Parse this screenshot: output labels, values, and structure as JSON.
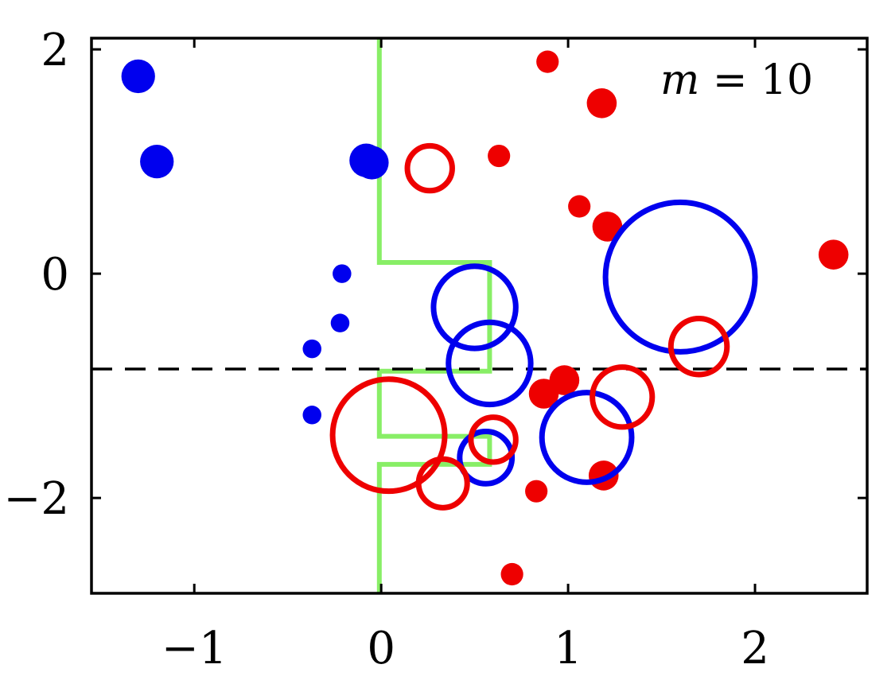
{
  "chart_data": {
    "type": "scatter",
    "title": "",
    "xlabel": "",
    "ylabel": "",
    "xlim": [
      -1.55,
      2.6
    ],
    "ylim": [
      -2.85,
      2.1
    ],
    "xticks": [
      -1,
      0,
      1,
      2
    ],
    "yticks": [
      -2,
      0,
      2
    ],
    "xtick_labels": [
      "−1",
      "0",
      "1",
      "2"
    ],
    "ytick_labels": [
      "−2",
      "0",
      "2"
    ],
    "grid": false,
    "annotation": {
      "var": "m",
      "text": " = 10",
      "position": "top-right"
    },
    "colors": {
      "class_a": "#0000ee",
      "class_b": "#ee0000",
      "boundary": "#88ee66",
      "threshold": "#000000"
    },
    "threshold_y": -0.85,
    "decision_boundary": [
      [
        -0.01,
        2.1
      ],
      [
        -0.01,
        0.1
      ],
      [
        0.58,
        0.1
      ],
      [
        0.58,
        -0.87
      ],
      [
        -0.01,
        -0.87
      ],
      [
        -0.01,
        -1.45
      ],
      [
        0.58,
        -1.45
      ],
      [
        0.58,
        -1.7
      ],
      [
        -0.01,
        -1.7
      ],
      [
        -0.01,
        -2.85
      ]
    ],
    "filled_points": [
      {
        "x": -1.3,
        "y": 1.76,
        "weight": 0.09,
        "cls": "a"
      },
      {
        "x": -1.2,
        "y": 1.0,
        "weight": 0.09,
        "cls": "a"
      },
      {
        "x": -0.08,
        "y": 1.01,
        "weight": 0.09,
        "cls": "a"
      },
      {
        "x": -0.05,
        "y": 0.99,
        "weight": 0.09,
        "cls": "a"
      },
      {
        "x": -0.21,
        "y": 0.0,
        "weight": 0.05,
        "cls": "a"
      },
      {
        "x": -0.22,
        "y": -0.44,
        "weight": 0.05,
        "cls": "a"
      },
      {
        "x": -0.37,
        "y": -0.67,
        "weight": 0.05,
        "cls": "a"
      },
      {
        "x": -0.37,
        "y": -1.26,
        "weight": 0.05,
        "cls": "a"
      },
      {
        "x": 0.89,
        "y": 1.89,
        "weight": 0.06,
        "cls": "b"
      },
      {
        "x": 1.18,
        "y": 1.52,
        "weight": 0.08,
        "cls": "b"
      },
      {
        "x": 0.63,
        "y": 1.05,
        "weight": 0.06,
        "cls": "b"
      },
      {
        "x": 1.06,
        "y": 0.6,
        "weight": 0.06,
        "cls": "b"
      },
      {
        "x": 1.21,
        "y": 0.42,
        "weight": 0.08,
        "cls": "b"
      },
      {
        "x": 2.42,
        "y": 0.17,
        "weight": 0.08,
        "cls": "b"
      },
      {
        "x": 0.98,
        "y": -0.95,
        "weight": 0.08,
        "cls": "b"
      },
      {
        "x": 0.87,
        "y": -1.07,
        "weight": 0.08,
        "cls": "b"
      },
      {
        "x": 1.19,
        "y": -1.8,
        "weight": 0.08,
        "cls": "b"
      },
      {
        "x": 0.83,
        "y": -1.94,
        "weight": 0.06,
        "cls": "b"
      },
      {
        "x": 0.7,
        "y": -2.68,
        "weight": 0.06,
        "cls": "b"
      }
    ],
    "ring_points": [
      {
        "x": 0.5,
        "y": -0.3,
        "weight": 0.22,
        "cls": "a"
      },
      {
        "x": 0.58,
        "y": -0.8,
        "weight": 0.22,
        "cls": "a"
      },
      {
        "x": 1.6,
        "y": -0.03,
        "weight": 0.4,
        "cls": "a"
      },
      {
        "x": 1.1,
        "y": -1.46,
        "weight": 0.24,
        "cls": "a"
      },
      {
        "x": 0.56,
        "y": -1.64,
        "weight": 0.14,
        "cls": "a"
      },
      {
        "x": 0.26,
        "y": 0.94,
        "weight": 0.12,
        "cls": "b"
      },
      {
        "x": 1.7,
        "y": -0.65,
        "weight": 0.15,
        "cls": "b"
      },
      {
        "x": 1.29,
        "y": -1.1,
        "weight": 0.16,
        "cls": "b"
      },
      {
        "x": 0.04,
        "y": -1.44,
        "weight": 0.3,
        "cls": "b"
      },
      {
        "x": 0.6,
        "y": -1.48,
        "weight": 0.12,
        "cls": "b"
      },
      {
        "x": 0.33,
        "y": -1.87,
        "weight": 0.13,
        "cls": "b"
      }
    ]
  }
}
